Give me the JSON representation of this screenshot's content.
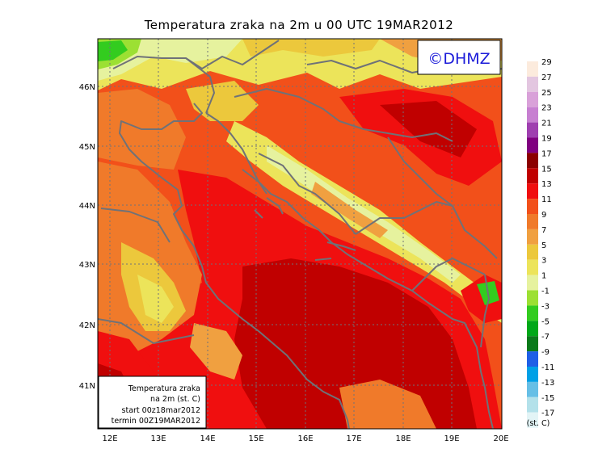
{
  "title": "Temperatura zraka na 2m u 00 UTC 19MAR2012",
  "logo": "©DHMZ",
  "colors": {
    "frame": "#000000",
    "coast": "#6f7278",
    "grid": "#6f7278",
    "logo_text": "#1b1bd9"
  },
  "axes": {
    "x_ticks": [
      "12E",
      "13E",
      "14E",
      "15E",
      "16E",
      "17E",
      "18E",
      "19E",
      "20E"
    ],
    "y_ticks": [
      "46N",
      "45N",
      "44N",
      "43N",
      "42N",
      "41N"
    ]
  },
  "info_box": {
    "line1": "Temperatura zraka",
    "line2": "na 2m (st. C)",
    "line3": "start 00z18mar2012",
    "line4": "termin 00Z19MAR2012"
  },
  "legend": {
    "unit": "(st. C)",
    "entries": [
      {
        "label": "29",
        "color": "#fcebdd"
      },
      {
        "label": "27",
        "color": "#e3c6e0"
      },
      {
        "label": "25",
        "color": "#d9a1d9"
      },
      {
        "label": "23",
        "color": "#c77fd1"
      },
      {
        "label": "21",
        "color": "#9f3fb0"
      },
      {
        "label": "19",
        "color": "#800080"
      },
      {
        "label": "17",
        "color": "#8b0000"
      },
      {
        "label": "15",
        "color": "#c00000"
      },
      {
        "label": "13",
        "color": "#f00f0f"
      },
      {
        "label": "11",
        "color": "#f2501a"
      },
      {
        "label": "9",
        "color": "#f07a2a"
      },
      {
        "label": "7",
        "color": "#f0a040"
      },
      {
        "label": "5",
        "color": "#ecc83c"
      },
      {
        "label": "3",
        "color": "#ece45a"
      },
      {
        "label": "1",
        "color": "#e6f29e"
      },
      {
        "label": "-1",
        "color": "#9ce033"
      },
      {
        "label": "-3",
        "color": "#33cc1f"
      },
      {
        "label": "-5",
        "color": "#00a818"
      },
      {
        "label": "-7",
        "color": "#0a7a1a"
      },
      {
        "label": "-9",
        "color": "#1f5fe6"
      },
      {
        "label": "-11",
        "color": "#00a0e6"
      },
      {
        "label": "-13",
        "color": "#66bfe6"
      },
      {
        "label": "-15",
        "color": "#b3e1ea"
      },
      {
        "label": "-17",
        "color": "#e2f4f6"
      }
    ]
  }
}
